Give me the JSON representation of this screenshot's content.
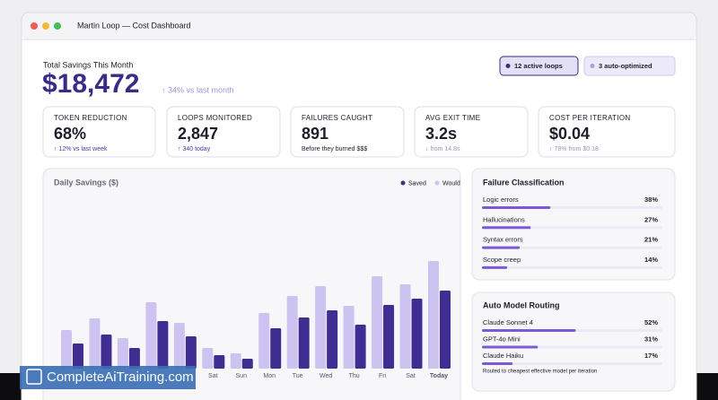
{
  "window": {
    "title": "Martin Loop — Cost Dashboard"
  },
  "header": {
    "label": "Total Savings This Month",
    "total": "$18,472",
    "change": "↑ 34% vs last month",
    "badges": [
      "12 active loops",
      "3 auto-optimized"
    ]
  },
  "stats": [
    {
      "label": "TOKEN REDUCTION",
      "value": "68%",
      "sub": "↑ 12% vs last week"
    },
    {
      "label": "LOOPS MONITORED",
      "value": "2,847",
      "sub": "↑ 340 today"
    },
    {
      "label": "FAILURES CAUGHT",
      "value": "891",
      "sub": "Before they burned $$$"
    },
    {
      "label": "AVG EXIT TIME",
      "value": "3.2s",
      "sub": "↓ from 14.8s"
    },
    {
      "label": "COST PER ITERATION",
      "value": "$0.04",
      "sub": "↑ 78% from $0.18"
    }
  ],
  "chart_data": {
    "type": "bar",
    "title": "Daily Savings ($)",
    "categories": [
      null,
      null,
      null,
      null,
      null,
      "Sat",
      "Sun",
      "Mon",
      "Tue",
      "Wed",
      "Thu",
      "Fri",
      "Sat",
      "Today"
    ],
    "series": [
      {
        "name": "Saved",
        "color": "#3f2d91",
        "values": [
          28,
          38,
          23,
          53,
          36,
          15,
          11,
          45,
          57,
          65,
          49,
          71,
          78,
          87
        ]
      },
      {
        "name": "Would have",
        "color": "#cdc3f0",
        "values": [
          43,
          56,
          34,
          74,
          51,
          23,
          17,
          62,
          81,
          92,
          70,
          103,
          94,
          120
        ]
      }
    ]
  },
  "failure": {
    "title": "Failure Classification",
    "items": [
      {
        "name": "Logic errors",
        "value": 38,
        "value_label": "38%"
      },
      {
        "name": "Hallucinations",
        "value": 27,
        "value_label": "27%"
      },
      {
        "name": "Syntax errors",
        "value": 21,
        "value_label": "21%"
      },
      {
        "name": "Scope creep",
        "value": 14,
        "value_label": "14%"
      }
    ]
  },
  "routing": {
    "title": "Auto Model Routing",
    "items": [
      {
        "name": "Claude Sonnet 4",
        "value": 52,
        "value_label": "52%"
      },
      {
        "name": "GPT-4o Mini",
        "value": 31,
        "value_label": "31%"
      },
      {
        "name": "Claude Haiku",
        "value": 17,
        "value_label": "17%"
      }
    ],
    "note": "Routed to cheapest effective model per iteration"
  },
  "watermark": "CompleteAiTraining.com"
}
